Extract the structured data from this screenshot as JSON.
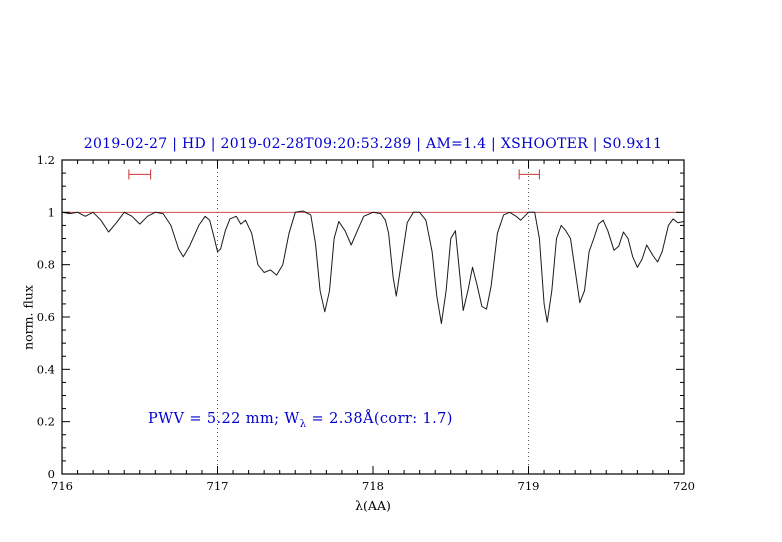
{
  "chart_data": {
    "type": "line",
    "title": "2019-02-27 | HD | 2019-02-28T09:20:53.289 | AM=1.4 | XSHOOTER | S0.9x11",
    "xlabel": "λ(AA)",
    "ylabel": "norm. flux",
    "xlim": [
      716,
      720
    ],
    "ylim": [
      0,
      1.2
    ],
    "grid": false,
    "legend": "none",
    "xticks": {
      "values": [
        716,
        717,
        718,
        719,
        720
      ],
      "labels": [
        "716",
        "717",
        "718",
        "719",
        "720"
      ],
      "minor_step": 0.1
    },
    "yticks": {
      "values": [
        0,
        0.2,
        0.4,
        0.6,
        0.8,
        1,
        1.2
      ],
      "labels": [
        "0",
        "0.2",
        "0.4",
        "0.6",
        "0.8",
        "1",
        "1.2"
      ],
      "minor_step": 0.05
    },
    "colors": {
      "title": "#0000cc",
      "annotation": "#0000cc",
      "spectrum": "#1a1a1a",
      "reference_line": "#cc3333",
      "markers": "#cc3333",
      "dotted_lines": "#555555",
      "axis": "#000000"
    },
    "reference_line_y": 1.0,
    "dotted_vlines": [
      717,
      719
    ],
    "interval_markers": [
      {
        "x1": 716.43,
        "x2": 716.57,
        "y": 1.145
      },
      {
        "x1": 718.94,
        "x2": 719.07,
        "y": 1.145
      }
    ],
    "annotation": {
      "prefix": "PWV = 5.22 mm; W",
      "sub": "λ",
      "suffix": " = 2.38Å(corr: 1.7)"
    },
    "series": [
      {
        "name": "telluric-spectrum",
        "points": [
          [
            716.0,
            1.0
          ],
          [
            716.05,
            0.995
          ],
          [
            716.1,
            1.0
          ],
          [
            716.15,
            0.985
          ],
          [
            716.2,
            1.0
          ],
          [
            716.25,
            0.97
          ],
          [
            716.3,
            0.925
          ],
          [
            716.35,
            0.96
          ],
          [
            716.4,
            1.0
          ],
          [
            716.45,
            0.985
          ],
          [
            716.5,
            0.955
          ],
          [
            716.55,
            0.985
          ],
          [
            716.6,
            1.0
          ],
          [
            716.65,
            0.995
          ],
          [
            716.7,
            0.95
          ],
          [
            716.75,
            0.86
          ],
          [
            716.78,
            0.83
          ],
          [
            716.82,
            0.87
          ],
          [
            716.88,
            0.95
          ],
          [
            716.92,
            0.985
          ],
          [
            716.95,
            0.97
          ],
          [
            716.98,
            0.9
          ],
          [
            717.0,
            0.85
          ],
          [
            717.02,
            0.86
          ],
          [
            717.05,
            0.93
          ],
          [
            717.08,
            0.975
          ],
          [
            717.12,
            0.985
          ],
          [
            717.15,
            0.955
          ],
          [
            717.18,
            0.97
          ],
          [
            717.22,
            0.92
          ],
          [
            717.26,
            0.8
          ],
          [
            717.3,
            0.77
          ],
          [
            717.34,
            0.78
          ],
          [
            717.38,
            0.76
          ],
          [
            717.42,
            0.8
          ],
          [
            717.46,
            0.92
          ],
          [
            717.5,
            1.0
          ],
          [
            717.55,
            1.005
          ],
          [
            717.6,
            0.99
          ],
          [
            717.63,
            0.88
          ],
          [
            717.66,
            0.7
          ],
          [
            717.69,
            0.62
          ],
          [
            717.72,
            0.7
          ],
          [
            717.75,
            0.9
          ],
          [
            717.78,
            0.965
          ],
          [
            717.82,
            0.93
          ],
          [
            717.86,
            0.875
          ],
          [
            717.9,
            0.93
          ],
          [
            717.94,
            0.985
          ],
          [
            718.0,
            1.0
          ],
          [
            718.05,
            0.995
          ],
          [
            718.08,
            0.97
          ],
          [
            718.1,
            0.92
          ],
          [
            718.13,
            0.75
          ],
          [
            718.15,
            0.68
          ],
          [
            718.18,
            0.8
          ],
          [
            718.22,
            0.96
          ],
          [
            718.26,
            1.0
          ],
          [
            718.3,
            1.0
          ],
          [
            718.34,
            0.97
          ],
          [
            718.38,
            0.85
          ],
          [
            718.41,
            0.68
          ],
          [
            718.44,
            0.575
          ],
          [
            718.47,
            0.7
          ],
          [
            718.5,
            0.9
          ],
          [
            718.53,
            0.93
          ],
          [
            718.56,
            0.75
          ],
          [
            718.58,
            0.625
          ],
          [
            718.61,
            0.7
          ],
          [
            718.64,
            0.79
          ],
          [
            718.67,
            0.72
          ],
          [
            718.7,
            0.64
          ],
          [
            718.73,
            0.63
          ],
          [
            718.76,
            0.72
          ],
          [
            718.8,
            0.92
          ],
          [
            718.84,
            0.99
          ],
          [
            718.88,
            1.0
          ],
          [
            718.92,
            0.985
          ],
          [
            718.95,
            0.97
          ],
          [
            719.0,
            1.0
          ],
          [
            719.04,
            1.0
          ],
          [
            719.07,
            0.9
          ],
          [
            719.1,
            0.65
          ],
          [
            719.12,
            0.58
          ],
          [
            719.15,
            0.7
          ],
          [
            719.18,
            0.9
          ],
          [
            719.21,
            0.95
          ],
          [
            719.24,
            0.93
          ],
          [
            719.27,
            0.9
          ],
          [
            719.3,
            0.78
          ],
          [
            719.33,
            0.655
          ],
          [
            719.36,
            0.7
          ],
          [
            719.39,
            0.85
          ],
          [
            719.42,
            0.9
          ],
          [
            719.45,
            0.955
          ],
          [
            719.48,
            0.97
          ],
          [
            719.51,
            0.93
          ],
          [
            719.55,
            0.855
          ],
          [
            719.58,
            0.87
          ],
          [
            719.61,
            0.925
          ],
          [
            719.64,
            0.9
          ],
          [
            719.67,
            0.83
          ],
          [
            719.7,
            0.79
          ],
          [
            719.73,
            0.82
          ],
          [
            719.76,
            0.875
          ],
          [
            719.8,
            0.835
          ],
          [
            719.83,
            0.81
          ],
          [
            719.86,
            0.85
          ],
          [
            719.9,
            0.95
          ],
          [
            719.93,
            0.975
          ],
          [
            719.96,
            0.96
          ],
          [
            720.0,
            0.965
          ]
        ]
      }
    ]
  }
}
